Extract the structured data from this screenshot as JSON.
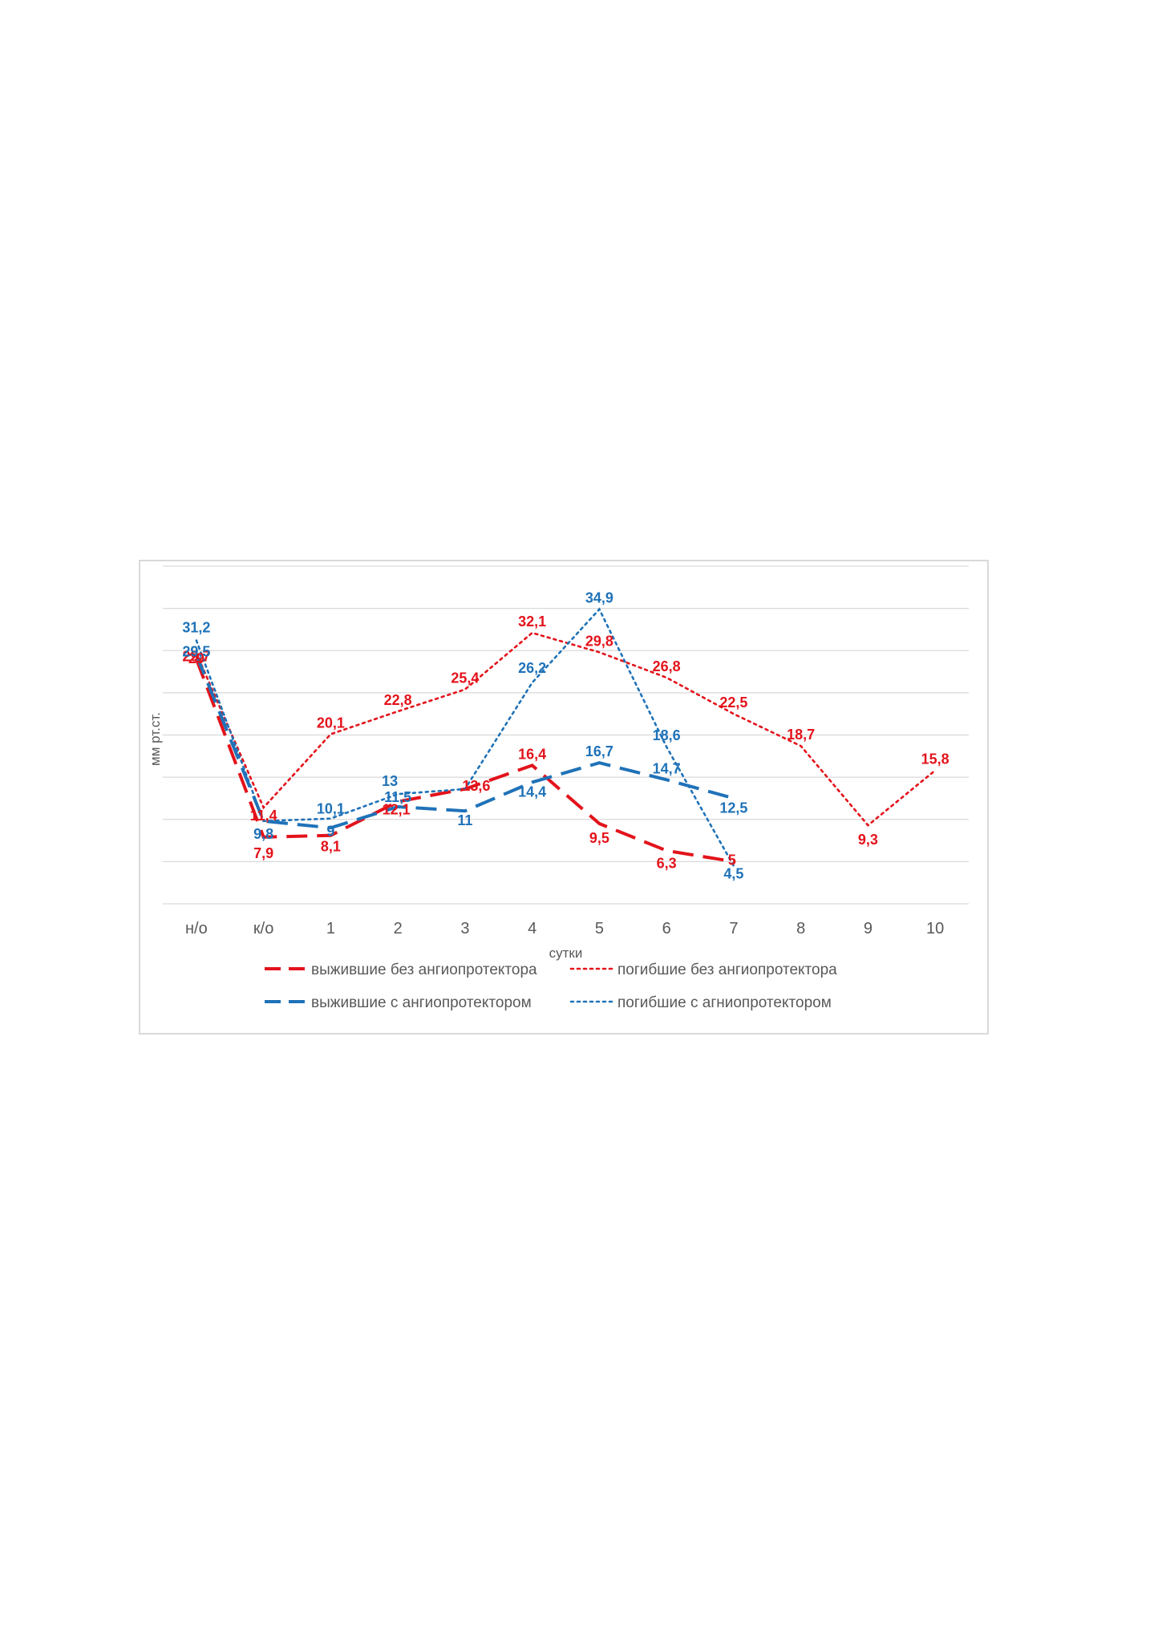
{
  "chart_data": {
    "type": "line",
    "title": "",
    "xlabel": "сутки",
    "ylabel": "мм рт.ст.",
    "categories": [
      "н/о",
      "к/о",
      "1",
      "2",
      "3",
      "4",
      "5",
      "6",
      "7",
      "8",
      "9",
      "10"
    ],
    "ylim": [
      0,
      40
    ],
    "gridlines": [
      0,
      5,
      10,
      15,
      20,
      25,
      30,
      35,
      40
    ],
    "grid": true,
    "legend": "bottom",
    "series": [
      {
        "name": "выжившие без ангиопротектора",
        "color": "#e3131b",
        "style": "dashed",
        "values": [
          29,
          7.9,
          8.1,
          12.1,
          13.6,
          16.4,
          9.5,
          6.3,
          5,
          null,
          null,
          null
        ],
        "labels": [
          "29",
          "7,9",
          "8,1",
          "12,1",
          "13,6",
          "16,4",
          "9,5",
          "6,3",
          "5",
          "",
          "",
          ""
        ]
      },
      {
        "name": "погибшие без ангиопротектора",
        "color": "#e3131b",
        "style": "dotted",
        "values": [
          29.7,
          11.4,
          20.1,
          22.8,
          25.4,
          32.1,
          29.8,
          26.8,
          22.5,
          18.7,
          9.3,
          15.8
        ],
        "labels": [
          "29,7",
          "11,4",
          "20,1",
          "22,8",
          "25,4",
          "32,1",
          "29,8",
          "26,8",
          "22,5",
          "18,7",
          "9,3",
          "15,8"
        ]
      },
      {
        "name": "выжившие с ангиопротектором",
        "color": "#1f72b8",
        "style": "dashed",
        "values": [
          29.5,
          9.8,
          9,
          11.5,
          11,
          14.4,
          16.7,
          14.7,
          12.5,
          null,
          null,
          null
        ],
        "labels": [
          "29,5",
          "9,8",
          "9",
          "11,5",
          "11",
          "14,4",
          "16,7",
          "14,7",
          "12,5",
          "",
          "",
          ""
        ]
      },
      {
        "name": "погибшие с агниопротектором",
        "color": "#1f72b8",
        "style": "dotted",
        "values": [
          31.2,
          9.8,
          10.1,
          13,
          13.6,
          26.2,
          34.9,
          18.6,
          4.5,
          null,
          null,
          null
        ],
        "labels": [
          "31,2",
          "",
          "10,1",
          "13",
          "",
          "26,2",
          "34,9",
          "18,6",
          "4,5",
          "",
          "",
          ""
        ]
      }
    ]
  }
}
